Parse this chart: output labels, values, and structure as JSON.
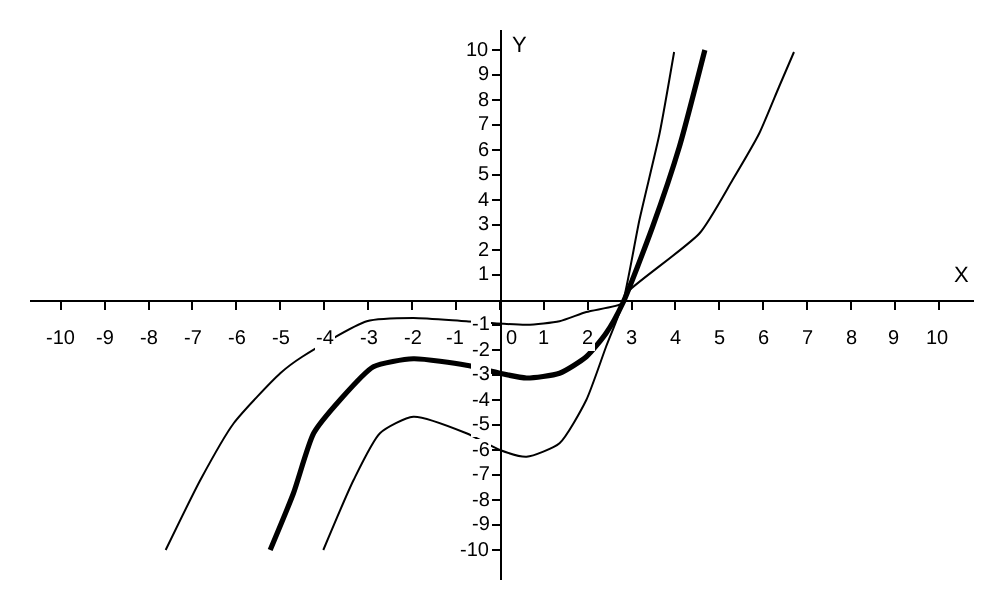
{
  "chart_data": {
    "type": "line",
    "xlabel": "X",
    "ylabel": "Y",
    "xlim": [
      -10.7,
      10.8
    ],
    "ylim": [
      -11.2,
      10.8
    ],
    "xticks": [
      -10,
      -9,
      -8,
      -7,
      -6,
      -5,
      -4,
      -3,
      -2,
      -1,
      0,
      1,
      2,
      3,
      4,
      5,
      6,
      7,
      8,
      9,
      10
    ],
    "yticks": [
      -10,
      -9,
      -8,
      -7,
      -6,
      -5,
      -4,
      -3,
      -2,
      -1,
      1,
      2,
      3,
      4,
      5,
      6,
      7,
      8,
      9,
      10
    ],
    "grid": false,
    "marker": "none",
    "line_style": "solid",
    "series": [
      {
        "color": "#000000",
        "x": [
          -7.61,
          -6.82,
          -6.06,
          -5.0,
          -4.5,
          -3.03,
          -1.97,
          -0.76,
          0.61,
          1.36,
          1.97,
          2.8,
          2.88,
          4.55,
          5.3,
          5.91,
          6.36,
          6.7
        ],
        "values": [
          -10,
          -7.2,
          -4.93,
          -2.93,
          -2.27,
          -0.85,
          -0.72,
          -0.85,
          -0.99,
          -0.85,
          -0.48,
          -0.13,
          0.27,
          2.67,
          4.8,
          6.67,
          8.53,
          9.92
        ]
      },
      {
        "color": "#000000",
        "x": [
          -5.23,
          -4.7,
          -4.24,
          -3.64,
          -2.88,
          -1.97,
          -0.76,
          0.0,
          0.61,
          1.36,
          1.97,
          2.42,
          2.8,
          3.48,
          4.09,
          4.67
        ],
        "values": [
          -10,
          -7.73,
          -5.33,
          -4.0,
          -2.67,
          -2.35,
          -2.61,
          -2.93,
          -3.12,
          -2.93,
          -2.27,
          -1.33,
          -0.13,
          2.93,
          6.13,
          10
        ]
      },
      {
        "color": "#000000",
        "x": [
          -4.02,
          -3.33,
          -2.73,
          -1.97,
          -0.76,
          0.0,
          0.61,
          1.36,
          1.97,
          2.42,
          2.8,
          3.18,
          3.64,
          3.97
        ],
        "values": [
          -10,
          -7.2,
          -5.33,
          -4.67,
          -5.33,
          -6.0,
          -6.27,
          -5.73,
          -4.0,
          -1.87,
          -0.13,
          3.2,
          6.67,
          9.92
        ]
      }
    ]
  }
}
